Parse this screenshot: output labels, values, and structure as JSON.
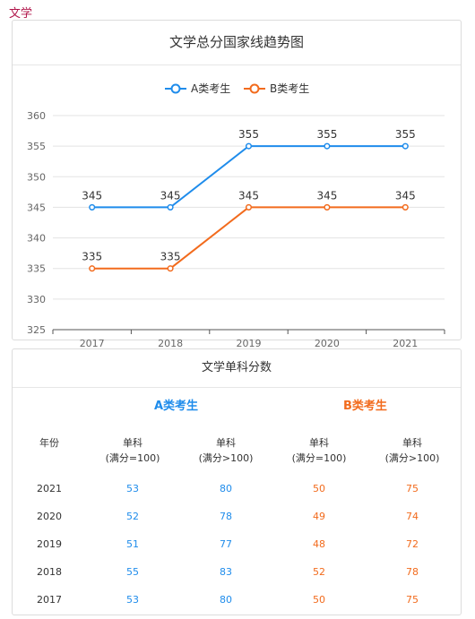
{
  "page_label": "文学",
  "chart_data": {
    "type": "line",
    "title": "文学总分国家线趋势图",
    "categories": [
      "2017",
      "2018",
      "2019",
      "2020",
      "2021"
    ],
    "series": [
      {
        "name": "A类考生",
        "values": [
          345,
          345,
          355,
          355,
          355
        ],
        "color": "#1f8ceb"
      },
      {
        "name": "B类考生",
        "values": [
          335,
          335,
          345,
          345,
          345
        ],
        "color": "#f26b1d"
      }
    ],
    "ylim": [
      325,
      360
    ],
    "yticks": [
      325,
      330,
      335,
      340,
      345,
      350,
      355,
      360
    ],
    "grid": true,
    "legend": "top-center",
    "data_labels": true
  },
  "table": {
    "title": "文学单科分数",
    "group_a": "A类考生",
    "group_b": "B类考生",
    "headers": [
      {
        "line1": "年份",
        "line2": ""
      },
      {
        "line1": "单科",
        "line2": "(满分=100)"
      },
      {
        "line1": "单科",
        "line2": "(满分>100)"
      },
      {
        "line1": "单科",
        "line2": "(满分=100)"
      },
      {
        "line1": "单科",
        "line2": "(满分>100)"
      }
    ],
    "rows": [
      [
        "2021",
        "53",
        "80",
        "50",
        "75"
      ],
      [
        "2020",
        "52",
        "78",
        "49",
        "74"
      ],
      [
        "2019",
        "51",
        "77",
        "48",
        "72"
      ],
      [
        "2018",
        "55",
        "83",
        "52",
        "78"
      ],
      [
        "2017",
        "53",
        "80",
        "50",
        "75"
      ]
    ]
  }
}
